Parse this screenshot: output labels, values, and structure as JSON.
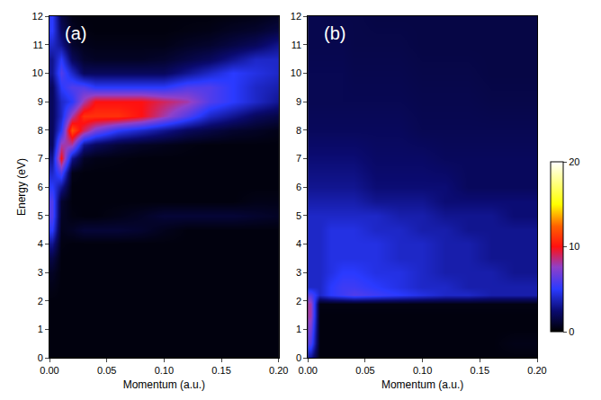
{
  "chart_data": [
    {
      "type": "heatmap",
      "annotations": [
        "(a)"
      ],
      "x_label": "Momentum (a.u.)",
      "y_label": "Energy (eV)",
      "x": [
        0.0025,
        0.01,
        0.02,
        0.03,
        0.04,
        0.06,
        0.08,
        0.1,
        0.12,
        0.14,
        0.16,
        0.18,
        0.2
      ],
      "y": [
        0,
        0.5,
        1,
        1.5,
        2,
        2.5,
        3,
        3.5,
        4,
        4.5,
        5,
        5.5,
        6,
        6.5,
        7,
        7.5,
        8,
        8.5,
        9,
        9.5,
        10,
        10.5,
        11,
        11.5,
        12
      ],
      "z": [
        [
          0.3,
          0.3,
          0.3,
          0.3,
          0.3,
          0.3,
          0.3,
          0.3,
          0.3,
          0.3,
          0.3,
          0.3,
          0.3
        ],
        [
          0.3,
          0.3,
          0.3,
          0.3,
          0.3,
          0.3,
          0.3,
          0.3,
          0.3,
          0.3,
          0.3,
          0.3,
          0.3
        ],
        [
          0.3,
          0.3,
          0.3,
          0.3,
          0.3,
          0.3,
          0.3,
          0.3,
          0.3,
          0.3,
          0.3,
          0.3,
          0.3
        ],
        [
          0.3,
          0.3,
          0.3,
          0.3,
          0.3,
          0.3,
          0.3,
          0.3,
          0.3,
          0.3,
          0.3,
          0.3,
          0.3
        ],
        [
          0.3,
          0.3,
          0.3,
          0.3,
          0.3,
          0.3,
          0.3,
          0.3,
          0.3,
          0.3,
          0.3,
          0.3,
          0.3
        ],
        [
          0.5,
          0.3,
          0.3,
          0.3,
          0.3,
          0.3,
          0.3,
          0.3,
          0.3,
          0.3,
          0.3,
          0.3,
          0.3
        ],
        [
          0.8,
          0.3,
          0.3,
          0.3,
          0.3,
          0.3,
          0.3,
          0.3,
          0.3,
          0.3,
          0.3,
          0.3,
          0.3
        ],
        [
          1.5,
          0.3,
          0.3,
          0.3,
          0.3,
          0.3,
          0.3,
          0.3,
          0.3,
          0.3,
          0.3,
          0.3,
          0.3
        ],
        [
          3,
          0.4,
          0.3,
          0.3,
          0.3,
          0.3,
          0.3,
          0.3,
          0.3,
          0.3,
          0.3,
          0.3,
          0.3
        ],
        [
          5,
          0.6,
          0.8,
          1.2,
          1.2,
          1.2,
          1,
          0.6,
          0.3,
          0.3,
          0.3,
          0.3,
          0.3
        ],
        [
          6,
          0.8,
          0.4,
          0.3,
          0.3,
          0.5,
          0.8,
          1.2,
          1.2,
          1.2,
          1.2,
          1,
          0.8
        ],
        [
          6,
          1,
          0.3,
          0.3,
          0.3,
          0.3,
          0.3,
          0.3,
          0.3,
          0.3,
          0.3,
          0.5,
          0.5
        ],
        [
          5,
          3,
          0.3,
          0.3,
          0.3,
          0.3,
          0.3,
          0.3,
          0.3,
          0.3,
          0.3,
          0.3,
          0.3
        ],
        [
          4,
          6,
          0.5,
          0.3,
          0.3,
          0.3,
          0.3,
          0.3,
          0.3,
          0.3,
          0.3,
          0.3,
          0.3
        ],
        [
          3,
          10,
          3,
          0.8,
          0.5,
          0.4,
          0.3,
          0.3,
          0.3,
          0.3,
          0.3,
          0.3,
          0.3
        ],
        [
          2,
          8,
          8,
          3,
          2,
          1.2,
          0.8,
          0.6,
          0.4,
          0.3,
          0.3,
          0.3,
          0.3
        ],
        [
          2,
          5,
          12,
          9,
          7,
          5,
          4,
          3,
          2,
          1.5,
          1,
          0.8,
          0.5
        ],
        [
          2,
          4,
          8,
          11,
          11,
          11,
          10,
          8,
          6,
          4,
          3,
          2,
          1.5
        ],
        [
          2,
          4,
          5,
          8,
          10,
          10,
          10,
          9,
          8,
          6,
          5,
          4,
          3
        ],
        [
          2,
          5,
          6,
          6,
          5,
          5,
          5,
          5,
          6,
          6,
          5,
          4,
          3.5
        ],
        [
          3,
          6,
          4,
          2,
          2,
          2,
          2,
          2,
          3,
          4,
          5,
          4.5,
          4
        ],
        [
          3,
          5,
          2,
          1,
          0.8,
          0.8,
          0.8,
          1,
          1.5,
          2,
          3,
          4,
          4
        ],
        [
          4,
          3,
          1,
          0.6,
          0.5,
          0.5,
          0.5,
          0.5,
          0.8,
          1,
          1.5,
          2,
          3
        ],
        [
          5,
          2,
          0.8,
          0.4,
          0.3,
          0.3,
          0.3,
          0.3,
          0.4,
          0.5,
          0.8,
          1,
          1.5
        ],
        [
          5,
          1.5,
          0.5,
          0.3,
          0.3,
          0.3,
          0.3,
          0.3,
          0.3,
          0.3,
          0.4,
          0.5,
          0.8
        ]
      ],
      "xlim": [
        0,
        0.2
      ],
      "xticks": [
        {
          "value": 0,
          "label": "0.00"
        },
        {
          "value": 0.05,
          "label": "0.05"
        },
        {
          "value": 0.1,
          "label": "0.10"
        },
        {
          "value": 0.15,
          "label": "0.15"
        },
        {
          "value": 0.2,
          "label": "0.20"
        }
      ],
      "ylim": [
        0,
        12
      ],
      "yticks": [
        0,
        1,
        2,
        3,
        4,
        5,
        6,
        7,
        8,
        9,
        10,
        11,
        12
      ],
      "zlim": [
        0,
        20
      ]
    },
    {
      "type": "heatmap",
      "annotations": [
        "(b)"
      ],
      "x_label": "Momentum (a.u.)",
      "x": [
        0.0025,
        0.01,
        0.02,
        0.03,
        0.04,
        0.06,
        0.08,
        0.1,
        0.12,
        0.14,
        0.16,
        0.18,
        0.2
      ],
      "y": [
        0,
        0.5,
        1,
        1.5,
        1.9,
        2.2,
        2.5,
        3,
        3.5,
        4,
        4.5,
        5,
        5.5,
        6,
        7,
        8,
        9,
        10,
        11,
        12
      ],
      "z": [
        [
          3,
          0.3,
          0.3,
          0.3,
          0.3,
          0.3,
          0.3,
          0.3,
          0.3,
          0.3,
          0.3,
          0.3,
          0.3
        ],
        [
          6,
          0.3,
          0.3,
          0.3,
          0.3,
          0.3,
          0.3,
          0.3,
          0.3,
          0.3,
          0.3,
          0.5,
          0.5
        ],
        [
          7,
          0.3,
          0.3,
          0.3,
          0.3,
          0.3,
          0.3,
          0.3,
          0.3,
          0.3,
          0.3,
          0.3,
          0.3
        ],
        [
          8,
          0.3,
          0.3,
          0.3,
          0.3,
          0.3,
          0.3,
          0.3,
          0.3,
          0.3,
          0.3,
          0.3,
          0.3
        ],
        [
          8,
          0.4,
          0.4,
          0.4,
          0.4,
          0.4,
          0.4,
          0.4,
          0.4,
          0.4,
          0.4,
          0.4,
          0.4
        ],
        [
          6,
          4,
          5,
          5.5,
          6,
          5.5,
          5,
          4.5,
          4,
          4,
          3.5,
          3.5,
          3.5
        ],
        [
          4,
          4,
          5,
          5.5,
          5.5,
          5,
          4.5,
          4,
          4,
          3.5,
          3.5,
          3.5,
          3.5
        ],
        [
          4,
          4,
          4.5,
          5,
          5,
          4.5,
          4.5,
          4,
          3.5,
          3.5,
          3.5,
          3,
          3
        ],
        [
          4,
          4,
          4.5,
          4.5,
          4.5,
          4.5,
          4,
          4,
          3.5,
          3.5,
          3,
          3,
          3
        ],
        [
          4,
          4,
          4.5,
          4.5,
          4.5,
          4.5,
          4,
          4,
          3.5,
          3.5,
          3,
          3,
          3
        ],
        [
          4,
          4,
          4.5,
          4.5,
          4.5,
          4,
          4,
          3.5,
          3.5,
          3,
          3,
          3,
          3
        ],
        [
          4,
          4,
          4,
          4,
          4,
          4,
          3.5,
          3.5,
          3,
          3,
          3,
          2.5,
          2.5
        ],
        [
          3.5,
          3.5,
          3.5,
          3.5,
          3.5,
          3,
          3,
          3,
          2.5,
          2.5,
          2.5,
          2.5,
          2.5
        ],
        [
          3,
          3,
          3,
          3,
          3,
          2.5,
          2.5,
          2.5,
          2.5,
          2,
          2,
          2,
          2
        ],
        [
          2.5,
          2.5,
          2.5,
          2.5,
          2.5,
          2.2,
          2.2,
          2.2,
          2,
          2,
          2,
          2,
          2
        ],
        [
          2,
          2,
          2,
          2,
          2,
          2,
          2,
          1.8,
          1.8,
          1.8,
          1.8,
          1.8,
          1.8
        ],
        [
          1.8,
          1.8,
          1.8,
          1.8,
          1.8,
          1.8,
          1.8,
          1.7,
          1.7,
          1.7,
          1.6,
          1.6,
          1.6
        ],
        [
          1.8,
          1.8,
          1.8,
          1.8,
          1.7,
          1.7,
          1.7,
          1.6,
          1.6,
          1.6,
          1.5,
          1.5,
          1.5
        ],
        [
          1.7,
          1.7,
          1.7,
          1.7,
          1.6,
          1.6,
          1.6,
          1.5,
          1.5,
          1.5,
          1.5,
          1.5,
          1.5
        ],
        [
          1.7,
          1.7,
          1.6,
          1.6,
          1.6,
          1.5,
          1.5,
          1.5,
          1.5,
          1.5,
          1.5,
          1.5,
          1.5
        ]
      ],
      "xlim": [
        0,
        0.2
      ],
      "xticks": [
        {
          "value": 0,
          "label": "0.00"
        },
        {
          "value": 0.05,
          "label": "0.05"
        },
        {
          "value": 0.1,
          "label": "0.10"
        },
        {
          "value": 0.15,
          "label": "0.15"
        },
        {
          "value": 0.2,
          "label": "0.20"
        }
      ],
      "ylim": [
        0,
        12
      ],
      "yticks": [
        0,
        1,
        2,
        3,
        4,
        5,
        6,
        7,
        8,
        9,
        10,
        11,
        12
      ],
      "colorbar": {
        "range": [
          0,
          20
        ],
        "ticks": [
          0,
          10,
          20
        ]
      }
    }
  ]
}
